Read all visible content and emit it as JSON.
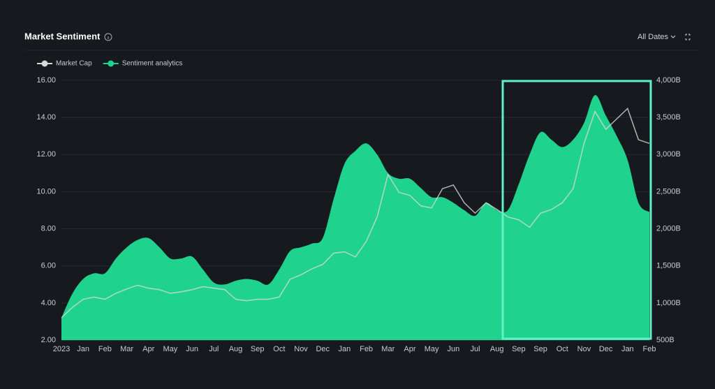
{
  "header": {
    "title": "Market Sentiment",
    "date_filter": "All Dates"
  },
  "chart_data": {
    "type": "area",
    "categories": [
      "2023",
      null,
      "Jan",
      null,
      "Feb",
      null,
      "Mar",
      null,
      "Apr",
      null,
      "May",
      null,
      "Jun",
      null,
      "Jul",
      null,
      "Aug",
      null,
      "Sep",
      null,
      "Oct",
      null,
      "Nov",
      null,
      "Dec",
      null,
      "Jan",
      null,
      "Feb",
      null,
      "Mar",
      null,
      "Apr",
      null,
      "May",
      null,
      "Jun",
      null,
      "Jul",
      null,
      "Aug",
      null,
      "Sep",
      null,
      "Sep",
      null,
      "Oct",
      null,
      "Nov",
      null,
      "Dec",
      null,
      "Jan",
      null,
      "Feb"
    ],
    "series": [
      {
        "name": "Sentiment analytics",
        "color": "#1fd38e",
        "axis": "y",
        "values": [
          3.2,
          4.5,
          5.3,
          5.6,
          5.6,
          6.4,
          7.0,
          7.4,
          7.5,
          7.0,
          6.4,
          6.4,
          6.5,
          5.8,
          5.1,
          5.0,
          5.2,
          5.3,
          5.2,
          5.0,
          5.8,
          6.8,
          7.0,
          7.2,
          7.5,
          9.6,
          11.5,
          12.2,
          12.6,
          12.0,
          11.0,
          10.7,
          10.7,
          10.2,
          9.7,
          9.7,
          9.4,
          9.0,
          8.7,
          9.4,
          9.0,
          9.0,
          10.4,
          12.0,
          13.2,
          12.8,
          12.4,
          12.8,
          13.7,
          15.2,
          14.1,
          13.0,
          11.7,
          9.4,
          8.9
        ]
      },
      {
        "name": "Market Cap",
        "color": "#d4dad8",
        "axis": "y2",
        "type": "line",
        "values": [
          800,
          940,
          1050,
          1080,
          1050,
          1130,
          1190,
          1240,
          1200,
          1180,
          1130,
          1150,
          1180,
          1220,
          1200,
          1180,
          1050,
          1030,
          1050,
          1050,
          1080,
          1320,
          1380,
          1460,
          1520,
          1670,
          1690,
          1620,
          1830,
          2160,
          2730,
          2490,
          2450,
          2310,
          2280,
          2540,
          2590,
          2350,
          2210,
          2350,
          2260,
          2160,
          2120,
          2020,
          2210,
          2260,
          2350,
          2540,
          3150,
          3580,
          3340,
          3480,
          3620,
          3200,
          3150
        ]
      }
    ],
    "ylim": [
      2,
      16
    ],
    "yticks": [
      {
        "value": 2,
        "label": "2.00"
      },
      {
        "value": 4,
        "label": "4.00"
      },
      {
        "value": 6,
        "label": "6.00"
      },
      {
        "value": 8,
        "label": "8.00"
      },
      {
        "value": 10,
        "label": "10.00"
      },
      {
        "value": 12,
        "label": "12.00"
      },
      {
        "value": 14,
        "label": "14.00"
      },
      {
        "value": 16,
        "label": "16.00"
      }
    ],
    "y2lim": [
      500,
      4000
    ],
    "y2ticks": [
      {
        "value": 500,
        "label": "500B"
      },
      {
        "value": 1000,
        "label": "1,000B"
      },
      {
        "value": 1500,
        "label": "1,500B"
      },
      {
        "value": 2000,
        "label": "2,000B"
      },
      {
        "value": 2500,
        "label": "2,500B"
      },
      {
        "value": 3000,
        "label": "3,000B"
      },
      {
        "value": 3500,
        "label": "3,500B"
      },
      {
        "value": 4000,
        "label": "4,000B"
      }
    ],
    "grid": true
  }
}
